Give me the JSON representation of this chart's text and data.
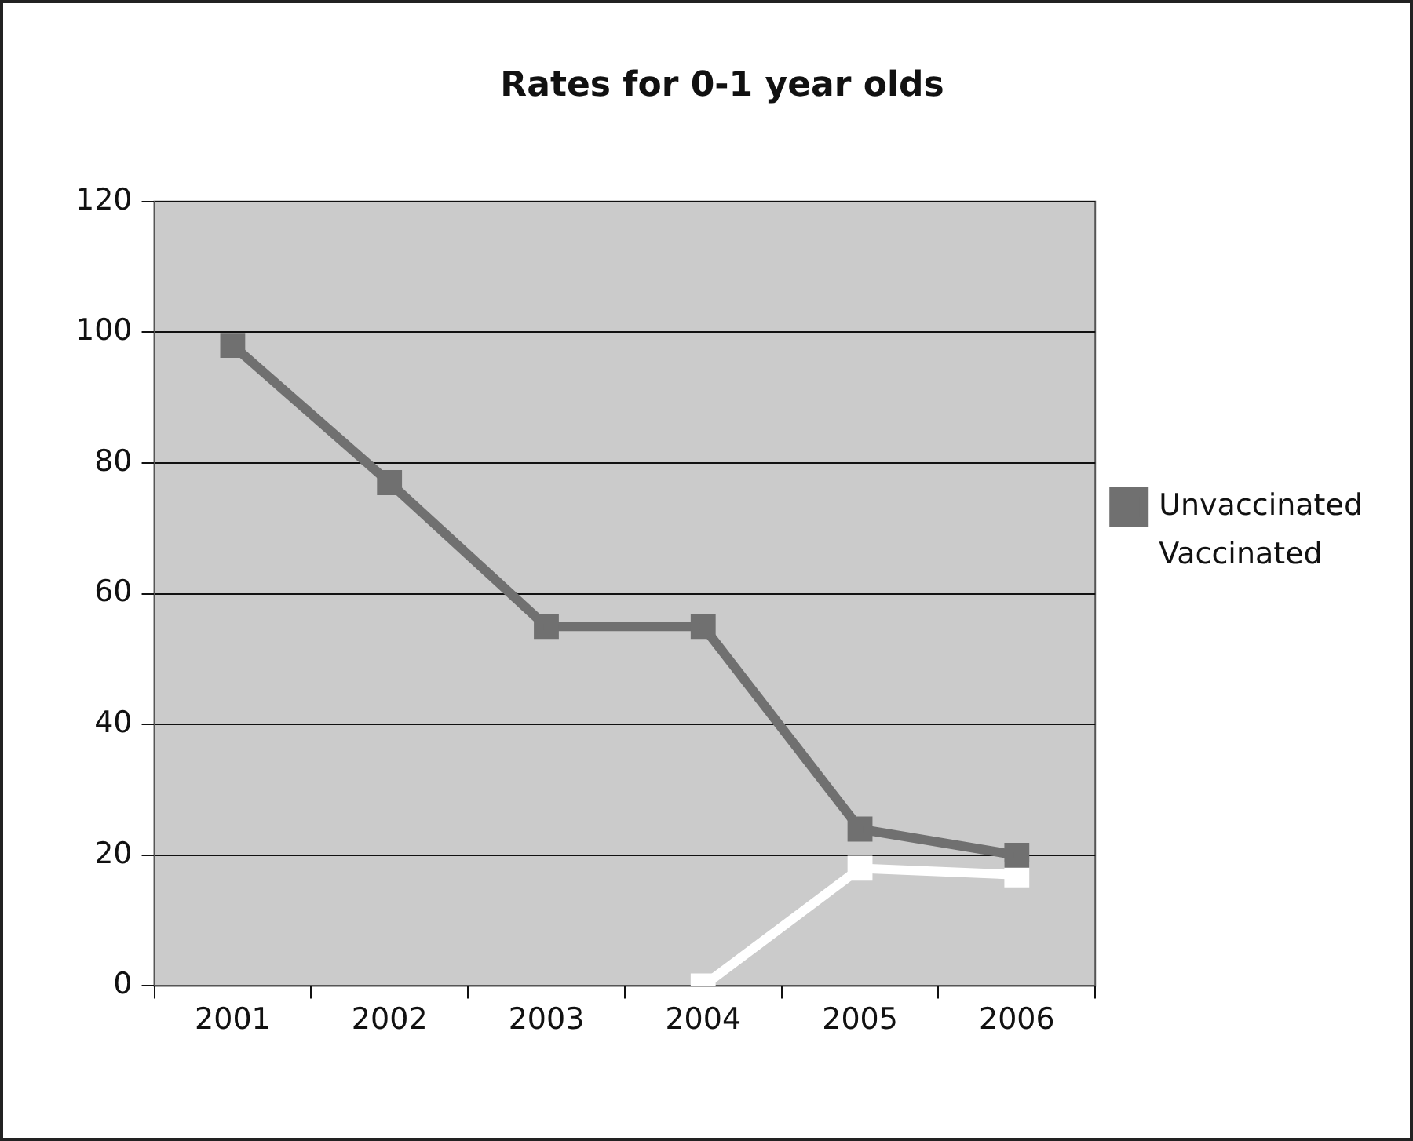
{
  "chart_data": {
    "type": "line",
    "title": "Rates for 0-1 year olds",
    "categories": [
      "2001",
      "2002",
      "2003",
      "2004",
      "2005",
      "2006"
    ],
    "series": [
      {
        "name": "Unvaccinated",
        "color": "#707070",
        "values": [
          98,
          77,
          55,
          55,
          24,
          20
        ]
      },
      {
        "name": "Vaccinated",
        "color": "#ffffff",
        "values": [
          null,
          null,
          null,
          0,
          18,
          17
        ]
      }
    ],
    "ylim": [
      0,
      120
    ],
    "yticks": [
      0,
      20,
      40,
      60,
      80,
      100,
      120
    ],
    "grid": "y",
    "legend": "right",
    "marker": "square"
  }
}
